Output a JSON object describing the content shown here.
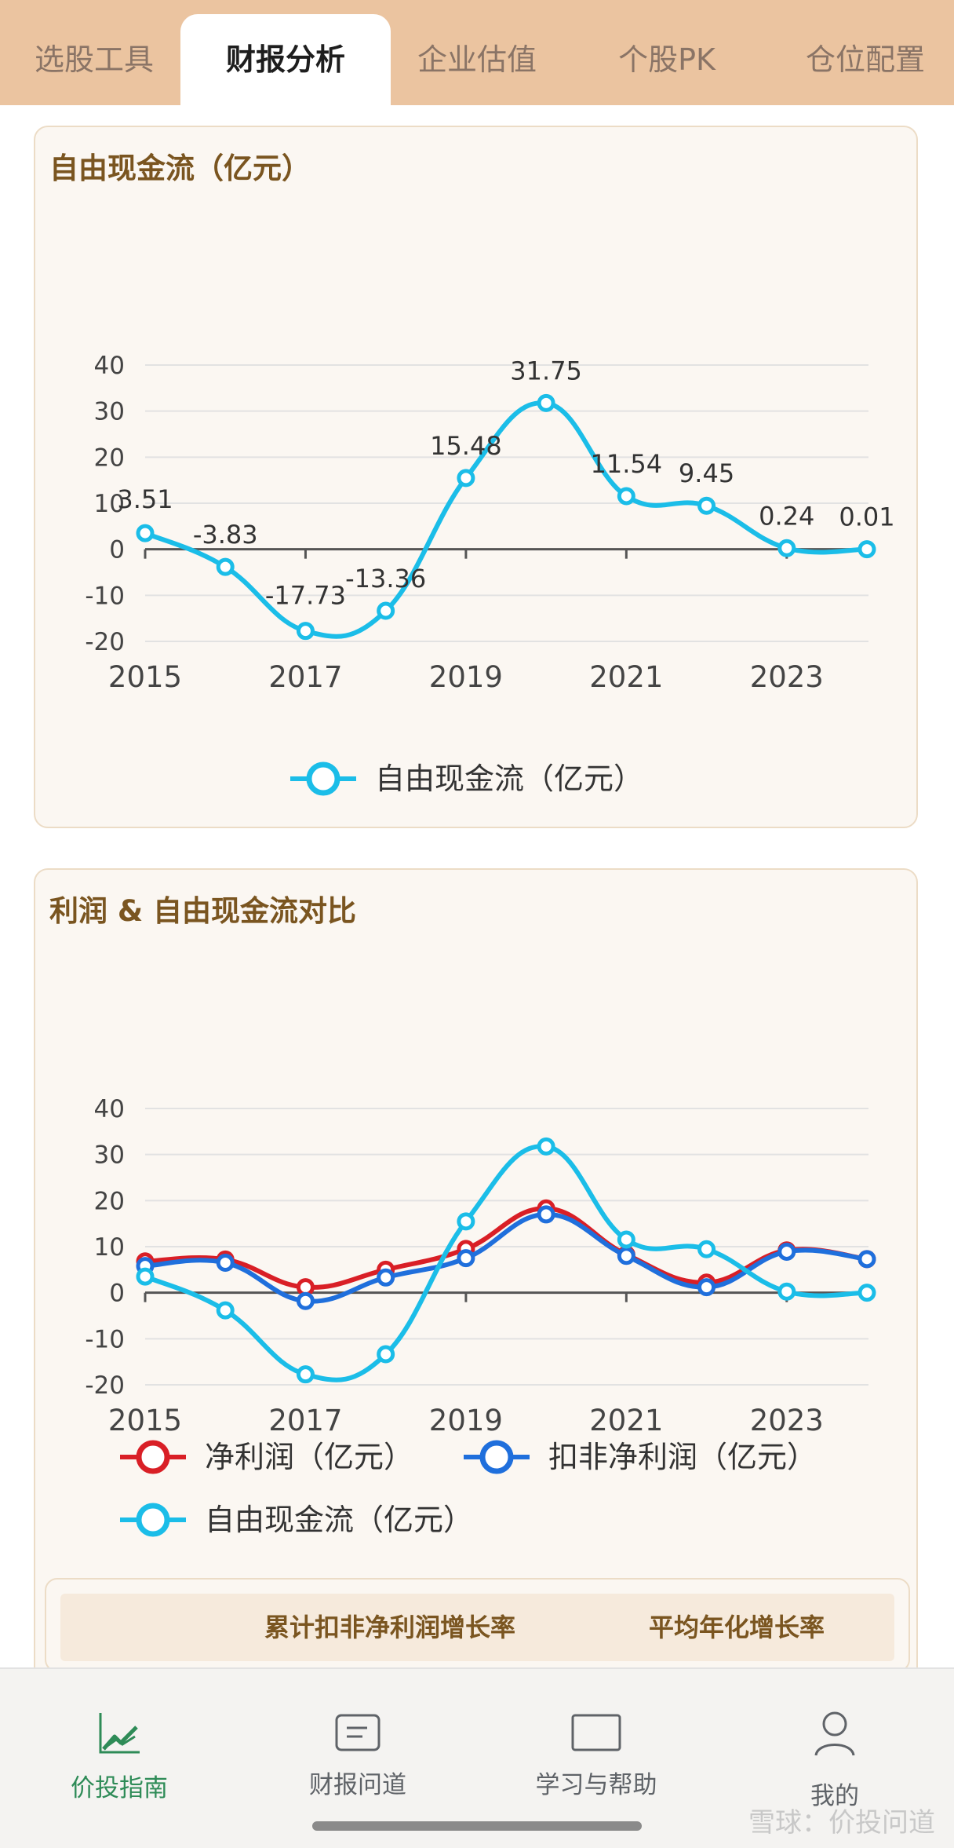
{
  "top_tabs": [
    {
      "label": "选股工具",
      "active": false
    },
    {
      "label": "财报分析",
      "active": true
    },
    {
      "label": "企业估值",
      "active": false
    },
    {
      "label": "个股PK",
      "active": false
    },
    {
      "label": "仓位配置",
      "active": false
    }
  ],
  "chart1_card": {
    "title": "自由现金流（亿元）"
  },
  "chart2_card": {
    "title": "利润 & 自由现金流对比"
  },
  "growth_table": {
    "headers": [
      "累计扣非净利润增长率",
      "平均年化增长率"
    ]
  },
  "bottom_nav": [
    {
      "label": "价投指南",
      "icon": "chart-trend-icon",
      "active": true
    },
    {
      "label": "财报问道",
      "icon": "message-icon",
      "active": false
    },
    {
      "label": "学习与帮助",
      "icon": "book-icon",
      "active": false
    },
    {
      "label": "我的",
      "icon": "person-icon",
      "active": false
    }
  ],
  "watermark": "雪球：价投问道",
  "colors": {
    "tabbar": "#ebc4a0",
    "title": "#7a5520",
    "fcf": "#1bbde8",
    "net_profit": "#d91f26",
    "deducted_profit": "#1f6fdc",
    "nav_active": "#2e8b57"
  },
  "chart_data": [
    {
      "type": "line",
      "title": "自由现金流（亿元）",
      "x": [
        2015,
        2016,
        2017,
        2018,
        2019,
        2020,
        2021,
        2022,
        2023,
        2024
      ],
      "x_tick_labels": [
        "2015",
        "2017",
        "2019",
        "2021",
        "2023"
      ],
      "y_ticks": [
        -20,
        -10,
        0,
        10,
        20,
        30,
        40
      ],
      "ylim": [
        -20,
        40
      ],
      "grid": true,
      "legend_position": "bottom",
      "smooth": true,
      "series": [
        {
          "name": "自由现金流（亿元）",
          "color": "#1bbde8",
          "values": [
            3.51,
            -3.83,
            -17.73,
            -13.36,
            15.48,
            31.75,
            11.54,
            9.45,
            0.24,
            0.01
          ],
          "labels": [
            "3.51",
            "-3.83",
            "-17.73",
            "-13.36",
            "15.48",
            "31.75",
            "11.54",
            "9.45",
            "0.24",
            "0.01"
          ]
        }
      ]
    },
    {
      "type": "line",
      "title": "利润 & 自由现金流对比",
      "x": [
        2015,
        2016,
        2017,
        2018,
        2019,
        2020,
        2021,
        2022,
        2023,
        2024
      ],
      "x_tick_labels": [
        "2015",
        "2017",
        "2019",
        "2021",
        "2023"
      ],
      "y_ticks": [
        -20,
        -10,
        0,
        10,
        20,
        30,
        40
      ],
      "ylim": [
        -20,
        40
      ],
      "grid": true,
      "legend_position": "bottom",
      "smooth": true,
      "series": [
        {
          "name": "净利润（亿元）",
          "color": "#d91f26",
          "values": [
            6.8,
            7.2,
            1.2,
            5.0,
            9.5,
            18.3,
            8.3,
            2.2,
            9.2,
            7.3
          ]
        },
        {
          "name": "扣非净利润（亿元）",
          "color": "#1f6fdc",
          "values": [
            5.8,
            6.5,
            -1.8,
            3.3,
            7.5,
            17.0,
            8.0,
            1.2,
            8.9,
            7.3
          ]
        },
        {
          "name": "自由现金流（亿元）",
          "color": "#1bbde8",
          "values": [
            3.51,
            -3.83,
            -17.73,
            -13.36,
            15.48,
            31.75,
            11.54,
            9.45,
            0.24,
            0.01
          ]
        }
      ]
    }
  ]
}
